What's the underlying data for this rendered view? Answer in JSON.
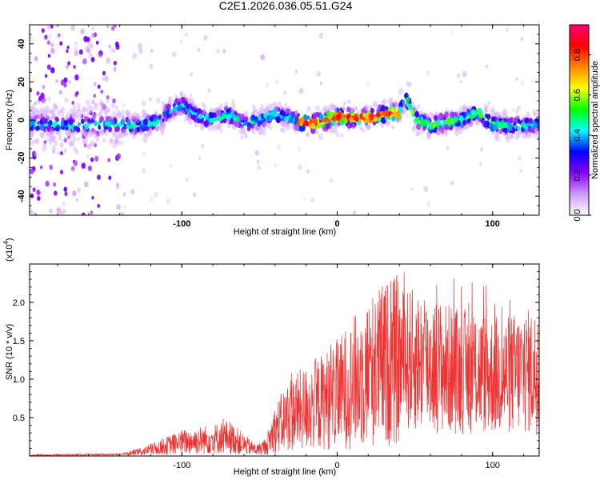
{
  "title": "C2E1.2026.036.05.51.G24",
  "chart_data": [
    {
      "type": "heatmap",
      "xlabel": "Height of straight line (km)",
      "ylabel": "Frequency (Hz)",
      "xlim": [
        -198,
        130
      ],
      "ylim": [
        -50,
        50
      ],
      "xticks": [
        -100,
        0,
        100
      ],
      "yticks": [
        -40,
        -20,
        0,
        20,
        40
      ],
      "colorbar": {
        "label": "Normalized spectral amplitude",
        "range": [
          0,
          0.95
        ],
        "ticks": [
          "0.0",
          "0.2",
          "0.4",
          "0.6",
          "0.8"
        ],
        "colormap": [
          "#ffffff",
          "#cc99ff",
          "#8800ff",
          "#0000ff",
          "#00ffff",
          "#00ff00",
          "#ffff00",
          "#ff8800",
          "#ff0000",
          "#ff0077"
        ]
      },
      "ridge": [
        [
          -190,
          -2
        ],
        [
          -170,
          -3
        ],
        [
          -150,
          -2
        ],
        [
          -130,
          -3
        ],
        [
          -115,
          -1
        ],
        [
          -108,
          5
        ],
        [
          -100,
          8
        ],
        [
          -90,
          2
        ],
        [
          -80,
          0
        ],
        [
          -70,
          3
        ],
        [
          -60,
          -2
        ],
        [
          -50,
          0
        ],
        [
          -40,
          3
        ],
        [
          -30,
          1
        ],
        [
          -20,
          -2
        ],
        [
          -10,
          -1
        ],
        [
          0,
          2
        ],
        [
          10,
          1
        ],
        [
          20,
          1
        ],
        [
          30,
          3
        ],
        [
          40,
          4
        ],
        [
          44,
          12
        ],
        [
          50,
          1
        ],
        [
          60,
          -3
        ],
        [
          70,
          -1
        ],
        [
          80,
          0
        ],
        [
          90,
          4
        ],
        [
          100,
          -2
        ],
        [
          110,
          -3
        ],
        [
          120,
          -3
        ],
        [
          130,
          -2
        ]
      ]
    },
    {
      "type": "line",
      "xlabel": "Height of straight line (km)",
      "ylabel": "SNR (10 * v/v)",
      "yscale_label": "(x10",
      "yscale_exponent": "4",
      "yscale_suffix": ")",
      "xlim": [
        -198,
        130
      ],
      "ylim": [
        0,
        2.5
      ],
      "xticks": [
        -100,
        0,
        100
      ],
      "yticks": [
        "0.5",
        "1.0",
        "1.5",
        "2.0"
      ],
      "line_color": "#ee3333",
      "envelope": [
        [
          -198,
          0.01
        ],
        [
          -140,
          0.02
        ],
        [
          -125,
          0.06
        ],
        [
          -100,
          0.18
        ],
        [
          -80,
          0.22
        ],
        [
          -70,
          0.25
        ],
        [
          -60,
          0.15
        ],
        [
          -52,
          0.08
        ],
        [
          -46,
          0.12
        ],
        [
          -40,
          0.35
        ],
        [
          -30,
          0.55
        ],
        [
          -20,
          0.62
        ],
        [
          -10,
          0.7
        ],
        [
          0,
          0.8
        ],
        [
          10,
          0.95
        ],
        [
          20,
          1.1
        ],
        [
          30,
          1.2
        ],
        [
          40,
          1.25
        ],
        [
          50,
          1.25
        ],
        [
          60,
          1.2
        ],
        [
          70,
          1.15
        ],
        [
          80,
          1.1
        ],
        [
          90,
          1.1
        ],
        [
          100,
          1.05
        ],
        [
          110,
          1.05
        ],
        [
          120,
          1.1
        ],
        [
          130,
          1.1
        ]
      ]
    }
  ]
}
